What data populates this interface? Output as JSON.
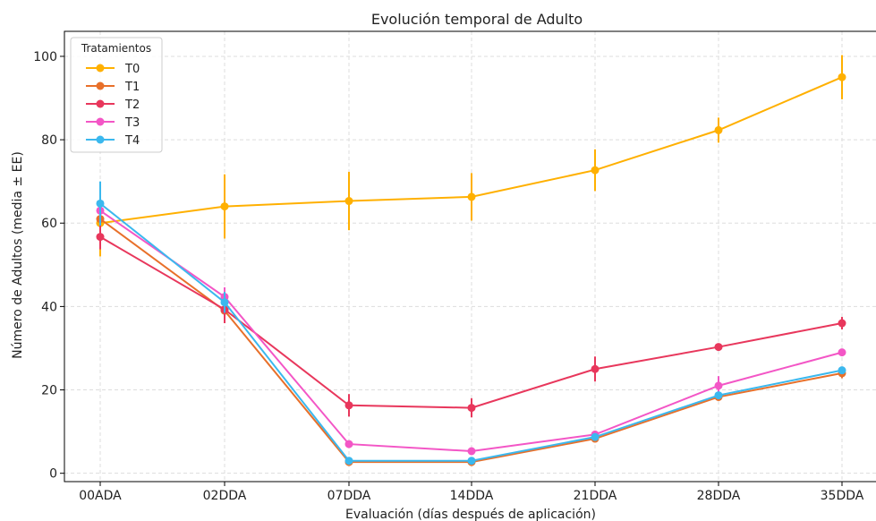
{
  "chart_data": {
    "type": "line",
    "title": "Evolución temporal de Adulto",
    "xlabel": "Evaluación (días después de aplicación)",
    "ylabel": "Número de Adultos (media ± EE)",
    "categories": [
      "00ADA",
      "02DDA",
      "07DDA",
      "14DDA",
      "21DDA",
      "28DDA",
      "35DDA"
    ],
    "ylim": [
      -2,
      106
    ],
    "yticks": [
      0,
      20,
      40,
      60,
      80,
      100
    ],
    "grid": true,
    "legend": {
      "title": "Tratamientos",
      "placement": "top-left"
    },
    "series": [
      {
        "name": "T0",
        "color": "#FFB000",
        "values": [
          60.0,
          64.0,
          65.3,
          66.3,
          72.7,
          82.3,
          95.0
        ],
        "errors": [
          8.0,
          7.7,
          7.0,
          5.7,
          5.0,
          3.0,
          5.3
        ]
      },
      {
        "name": "T1",
        "color": "#E8702A",
        "values": [
          61.0,
          39.0,
          2.7,
          2.7,
          8.3,
          18.3,
          24.0
        ],
        "errors": [
          3.0,
          2.0,
          0.5,
          0.5,
          0.6,
          0.8,
          1.2
        ]
      },
      {
        "name": "T2",
        "color": "#E8375C",
        "values": [
          56.7,
          39.3,
          16.3,
          15.7,
          25.0,
          30.3,
          36.0
        ],
        "errors": [
          3.0,
          3.3,
          2.7,
          2.3,
          3.0,
          0.5,
          1.5
        ]
      },
      {
        "name": "T3",
        "color": "#F356C6",
        "values": [
          63.0,
          42.3,
          7.0,
          5.3,
          9.3,
          21.0,
          29.0
        ],
        "errors": [
          3.0,
          2.3,
          0.4,
          0.4,
          0.4,
          2.3,
          0.8
        ]
      },
      {
        "name": "T4",
        "color": "#3BB8EE",
        "values": [
          64.7,
          41.0,
          3.0,
          3.0,
          8.7,
          18.7,
          24.7
        ],
        "errors": [
          5.3,
          2.5,
          0.4,
          0.4,
          0.4,
          0.8,
          0.8
        ]
      }
    ]
  }
}
